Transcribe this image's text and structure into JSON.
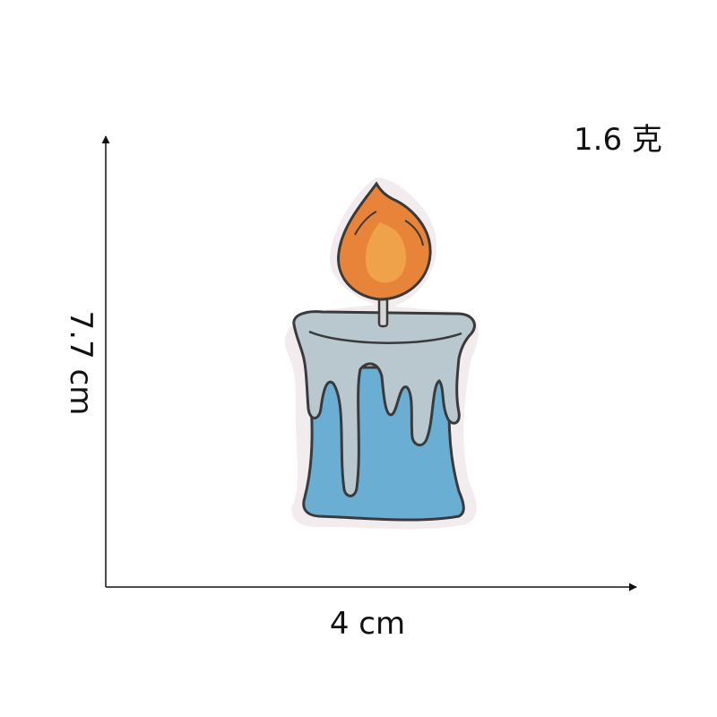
{
  "dimensions": {
    "weight": "1.6 克",
    "height": "7.7 cm",
    "width": "4 cm"
  },
  "patch": {
    "subject": "candle-patch",
    "colors": {
      "flame_outer": "#e8843a",
      "flame_inner": "#f0a24a",
      "wax_top": "#b9c8cf",
      "wax_body": "#6aaed4",
      "outline": "#3a3a3a",
      "wick": "#d8d8d8",
      "backing": "#f3ecee"
    }
  }
}
